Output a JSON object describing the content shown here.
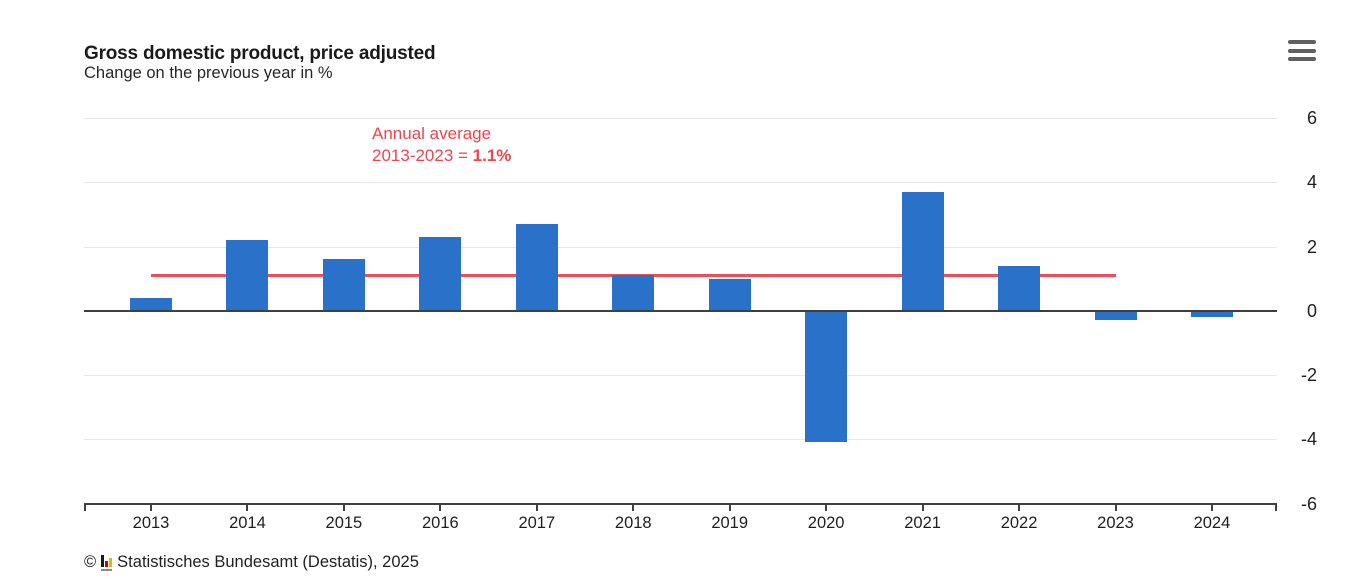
{
  "header": {
    "title": "Gross domestic product, price adjusted",
    "subtitle": "Change on the previous year in %"
  },
  "menu": {
    "icon": "hamburger-menu-icon"
  },
  "chart_data": {
    "type": "bar",
    "title": "Gross domestic product, price adjusted",
    "subtitle": "Change on the previous year in %",
    "categories": [
      "2013",
      "2014",
      "2015",
      "2016",
      "2017",
      "2018",
      "2019",
      "2020",
      "2021",
      "2022",
      "2023",
      "2024"
    ],
    "values": [
      0.4,
      2.2,
      1.6,
      2.3,
      2.7,
      1.1,
      1.0,
      -4.1,
      3.7,
      1.4,
      -0.3,
      -0.2
    ],
    "ylim": [
      -6,
      6
    ],
    "y_ticks": [
      6,
      4,
      2,
      0,
      -2,
      -4,
      -6
    ],
    "grid": true,
    "legend": "none",
    "bar_color": "#2971c9",
    "axis_color": "#3f3f3f",
    "gridline_color": "#e7e7e7",
    "average_line": {
      "value": 1.1,
      "from_category": "2013",
      "to_category": "2023",
      "color": "#e8505b"
    }
  },
  "annotation": {
    "line1": "Annual average",
    "line2_prefix": "2013-2023 = ",
    "line2_value": "1.1%",
    "color": "#e8474f"
  },
  "footer": {
    "copyright_symbol": "©",
    "logo": "destatis-bars-icon",
    "source_text": "Statistisches Bundesamt (Destatis), 2025"
  }
}
